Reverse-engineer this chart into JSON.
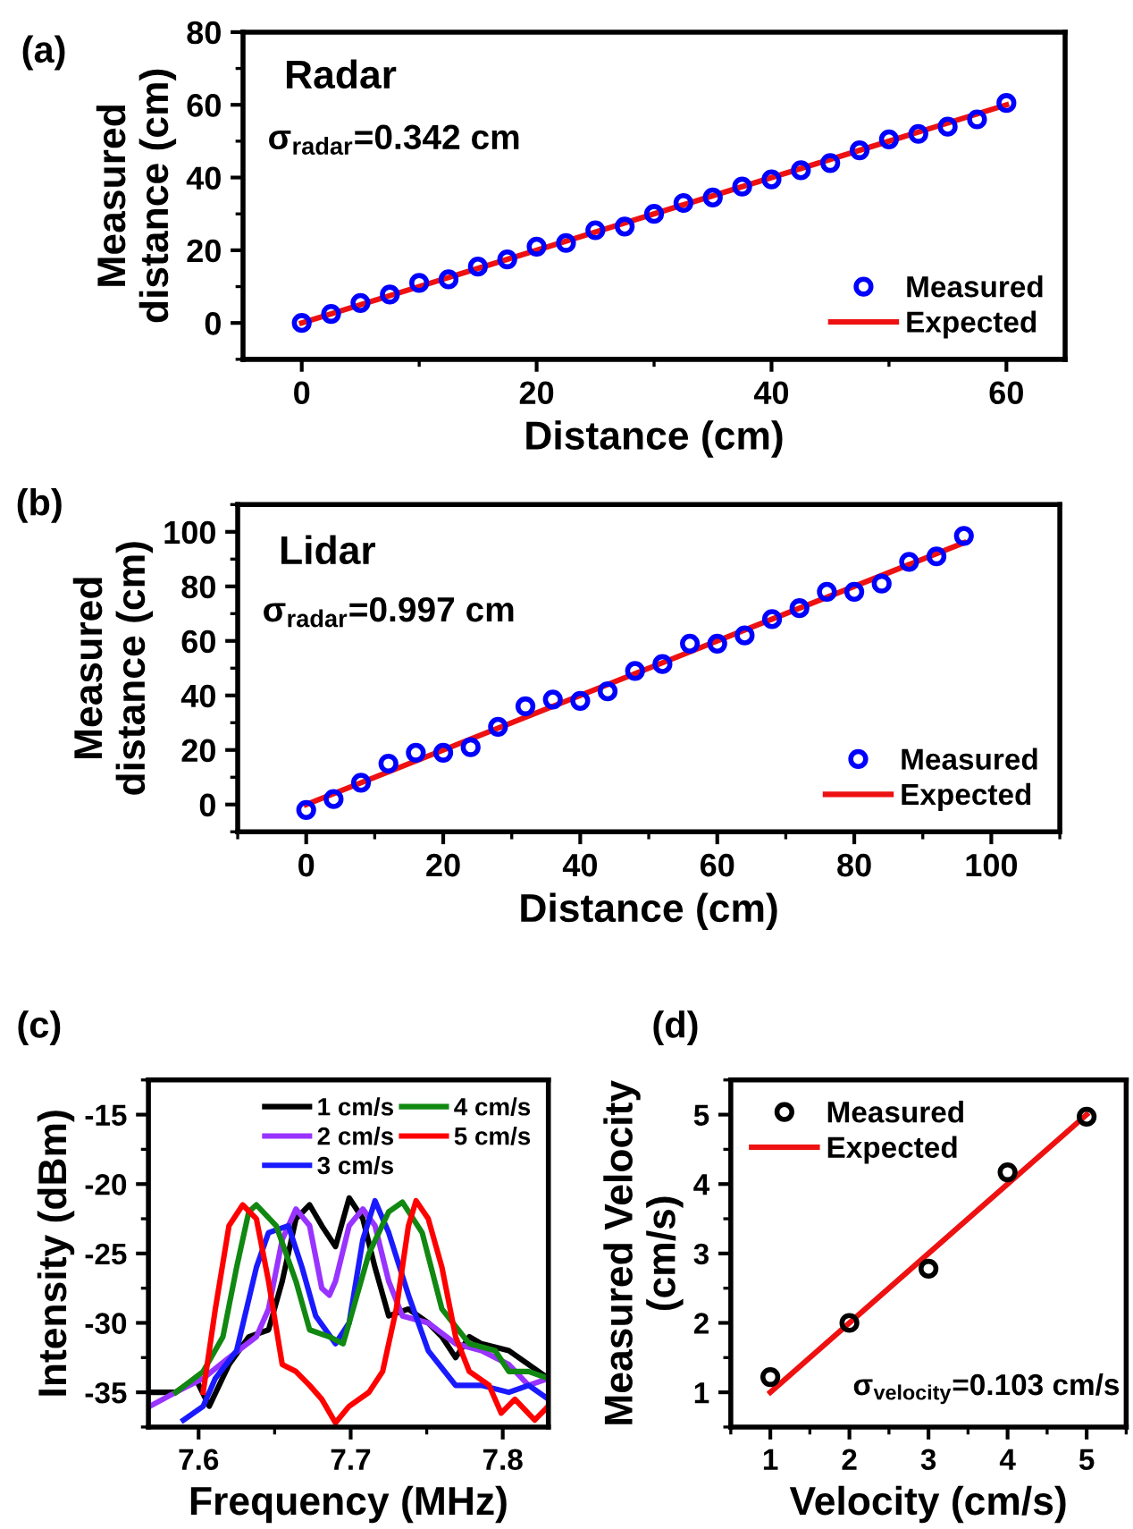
{
  "chart_data": [
    {
      "type": "scatter",
      "title": "(a)",
      "xlabel": "Distance (cm)",
      "ylabel": "Measured\ndistance (cm)",
      "xlim": [
        -5,
        65
      ],
      "ylim": [
        -10,
        80
      ],
      "xticks": [
        0,
        20,
        40,
        60
      ],
      "yticks": [
        0,
        20,
        40,
        60,
        80
      ],
      "legend": "bottom right",
      "grid": false,
      "annotations": [
        "Radar",
        "σ$_{radar}$=0.342 cm"
      ],
      "series": [
        {
          "name": "Measured",
          "type": "scatter",
          "marker": "circle",
          "color": "#0000ff",
          "x": [
            0,
            2.5,
            5,
            7.5,
            10,
            12.5,
            15,
            17.5,
            20,
            22.5,
            25,
            27.5,
            30,
            32.5,
            35,
            37.5,
            40,
            42.5,
            45,
            47.5,
            50,
            52.5,
            55,
            57.5,
            60
          ],
          "values": [
            0,
            2.5,
            5.5,
            7.8,
            11,
            12,
            15.5,
            17.5,
            21,
            22,
            25.5,
            26.5,
            30,
            33,
            34.5,
            37.5,
            39.5,
            42,
            44,
            47.5,
            50.5,
            52,
            54,
            56,
            60.5
          ]
        },
        {
          "name": "Expected",
          "type": "line",
          "line_style": "solid",
          "color": "#ee1111",
          "x": [
            0,
            60
          ],
          "values": [
            0,
            60
          ]
        }
      ]
    },
    {
      "type": "scatter",
      "title": "(b)",
      "xlabel": "Distance (cm)",
      "ylabel": "Measured\ndistance (cm)",
      "xlim": [
        -10,
        110
      ],
      "ylim": [
        -10,
        110
      ],
      "xticks": [
        0,
        20,
        40,
        60,
        80,
        100
      ],
      "yticks": [
        0,
        20,
        40,
        60,
        80,
        100
      ],
      "legend": "bottom right",
      "grid": false,
      "annotations": [
        "Lidar",
        "σ$_{radar}$=0.997 cm"
      ],
      "series": [
        {
          "name": "Measured",
          "type": "scatter",
          "marker": "circle",
          "color": "#0000ff",
          "x": [
            0,
            4,
            8,
            12,
            16,
            20,
            24,
            28,
            32,
            36,
            40,
            44,
            48,
            52,
            56,
            60,
            64,
            68,
            72,
            76,
            80,
            84,
            88,
            92,
            96
          ],
          "values": [
            -2,
            2,
            8,
            15,
            19,
            19,
            21,
            28.5,
            36,
            38.5,
            38,
            41.5,
            49,
            51.5,
            59,
            59,
            62,
            68,
            72,
            78,
            78,
            81,
            89,
            91,
            98.5
          ]
        },
        {
          "name": "Expected",
          "type": "line",
          "line_style": "solid",
          "color": "#ee1111",
          "x": [
            0,
            96
          ],
          "values": [
            0,
            96
          ]
        }
      ]
    },
    {
      "type": "line",
      "title": "(c)",
      "xlabel": "Frequency (MHz)",
      "ylabel": "Intensity (dBm)",
      "xlim": [
        7.567,
        7.83
      ],
      "ylim": [
        -37.5,
        -12.5
      ],
      "xticks": [
        7.6,
        7.7,
        7.8
      ],
      "yticks": [
        -15,
        -20,
        -25,
        -30,
        -35
      ],
      "legend": "top right",
      "grid": false,
      "line_style": "solid",
      "series": [
        {
          "name": "1 cm/s",
          "color": "#000000",
          "x": [
            7.568,
            7.585,
            7.598,
            7.607,
            7.62,
            7.633,
            7.646,
            7.655,
            7.664,
            7.673,
            7.681,
            7.69,
            7.699,
            7.708,
            7.716,
            7.725,
            7.738,
            7.751,
            7.76,
            7.769,
            7.778,
            7.786,
            7.804,
            7.817,
            7.83
          ],
          "values": [
            -35,
            -35,
            -34,
            -36,
            -33,
            -31,
            -30.5,
            -27,
            -22.5,
            -21.5,
            -23,
            -24.5,
            -21,
            -22.5,
            -26,
            -29.5,
            -29,
            -30,
            -31,
            -32.5,
            -31,
            -31.5,
            -32,
            -33,
            -34
          ]
        },
        {
          "name": "2 cm/s",
          "color": "#9933ff",
          "x": [
            7.568,
            7.585,
            7.603,
            7.62,
            7.638,
            7.646,
            7.655,
            7.664,
            7.673,
            7.681,
            7.686,
            7.69,
            7.699,
            7.708,
            7.716,
            7.725,
            7.734,
            7.751,
            7.769,
            7.786,
            7.804,
            7.817,
            7.83
          ],
          "values": [
            -36,
            -35,
            -34,
            -32.5,
            -31,
            -29,
            -24,
            -21.8,
            -23,
            -27.5,
            -28,
            -27,
            -23,
            -21.8,
            -23,
            -27,
            -29.5,
            -30,
            -31.5,
            -32,
            -33,
            -34.5,
            -34
          ]
        },
        {
          "name": "3 cm/s",
          "color": "#1a1aff",
          "x": [
            7.59,
            7.603,
            7.611,
            7.625,
            7.638,
            7.646,
            7.659,
            7.668,
            7.677,
            7.69,
            7.699,
            7.708,
            7.716,
            7.725,
            7.738,
            7.751,
            7.769,
            7.786,
            7.804,
            7.817,
            7.83
          ],
          "values": [
            -37,
            -36,
            -34,
            -32,
            -26,
            -23.5,
            -23,
            -26,
            -29.5,
            -31.5,
            -30,
            -24,
            -21.2,
            -23.5,
            -28,
            -32,
            -34.5,
            -34.5,
            -35,
            -34.5,
            -35.5
          ]
        },
        {
          "name": "4 cm/s",
          "color": "#118811",
          "x": [
            7.585,
            7.603,
            7.616,
            7.625,
            7.633,
            7.638,
            7.651,
            7.664,
            7.673,
            7.686,
            7.695,
            7.699,
            7.712,
            7.725,
            7.734,
            7.747,
            7.76,
            7.778,
            7.795,
            7.804,
            7.817,
            7.83
          ],
          "values": [
            -35,
            -33.5,
            -31,
            -26,
            -22,
            -21.5,
            -23,
            -27,
            -30.5,
            -31,
            -31.5,
            -30,
            -25,
            -22,
            -21.3,
            -23.5,
            -29,
            -31.5,
            -32,
            -33.5,
            -33.5,
            -34
          ]
        },
        {
          "name": "5 cm/s",
          "color": "#ff0000",
          "x": [
            7.603,
            7.611,
            7.62,
            7.629,
            7.638,
            7.646,
            7.655,
            7.664,
            7.673,
            7.681,
            7.69,
            7.699,
            7.712,
            7.721,
            7.73,
            7.738,
            7.743,
            7.751,
            7.76,
            7.769,
            7.778,
            7.791,
            7.799,
            7.808,
            7.821,
            7.83
          ],
          "values": [
            -35,
            -29,
            -23,
            -21.5,
            -22.5,
            -27,
            -33,
            -33.5,
            -34.5,
            -35.5,
            -37.2,
            -36,
            -35,
            -33.5,
            -29,
            -23,
            -21.2,
            -22.5,
            -26,
            -31,
            -33.5,
            -34.5,
            -36.5,
            -35.5,
            -37,
            -36
          ]
        }
      ]
    },
    {
      "type": "scatter",
      "title": "(d)",
      "xlabel": "Velocity (cm/s)",
      "ylabel": "Measured Velocity\n(cm/s)",
      "xlim": [
        0.5,
        5.5
      ],
      "ylim": [
        0.5,
        5.5
      ],
      "xticks": [
        1,
        2,
        3,
        4,
        5
      ],
      "yticks": [
        1,
        2,
        3,
        4,
        5
      ],
      "legend": "top left",
      "grid": false,
      "annotations": [
        "σ$_{velocity}$=0.103 cm/s"
      ],
      "series": [
        {
          "name": "Measured",
          "type": "scatter",
          "marker": "circle",
          "color": "#000000",
          "x": [
            1,
            2,
            3,
            4,
            5
          ],
          "values": [
            1.22,
            2.0,
            2.78,
            4.17,
            4.97
          ]
        },
        {
          "name": "Expected",
          "type": "line",
          "line_style": "solid",
          "color": "#ee1111",
          "x": [
            1,
            5
          ],
          "values": [
            1,
            5
          ]
        }
      ]
    }
  ]
}
